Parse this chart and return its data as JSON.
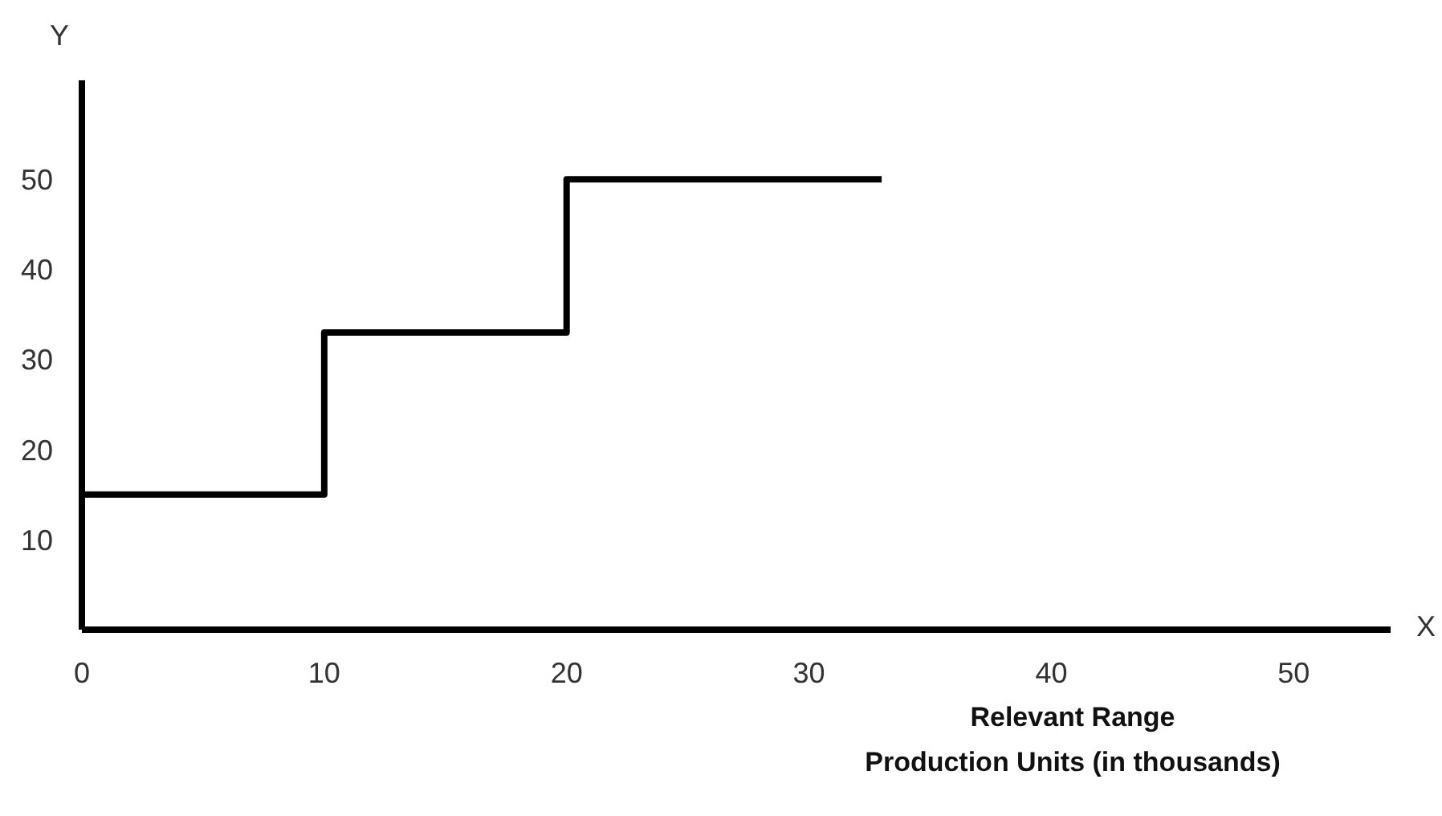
{
  "chart_data": {
    "type": "step",
    "xlabel": "X",
    "ylabel": "Y",
    "annotations": [
      "Relevant Range",
      "Production Units (in thousands)"
    ],
    "x": [
      0,
      10,
      20,
      33
    ],
    "series": [
      {
        "color": "#000000",
        "values": [
          15,
          33,
          50,
          50
        ]
      }
    ],
    "xlim": [
      0,
      54
    ],
    "xticks": [
      0,
      10,
      20,
      30,
      40,
      50
    ],
    "ylim": [
      0,
      61
    ],
    "yticks": [
      10,
      20,
      30,
      40,
      50
    ],
    "grid": false
  }
}
